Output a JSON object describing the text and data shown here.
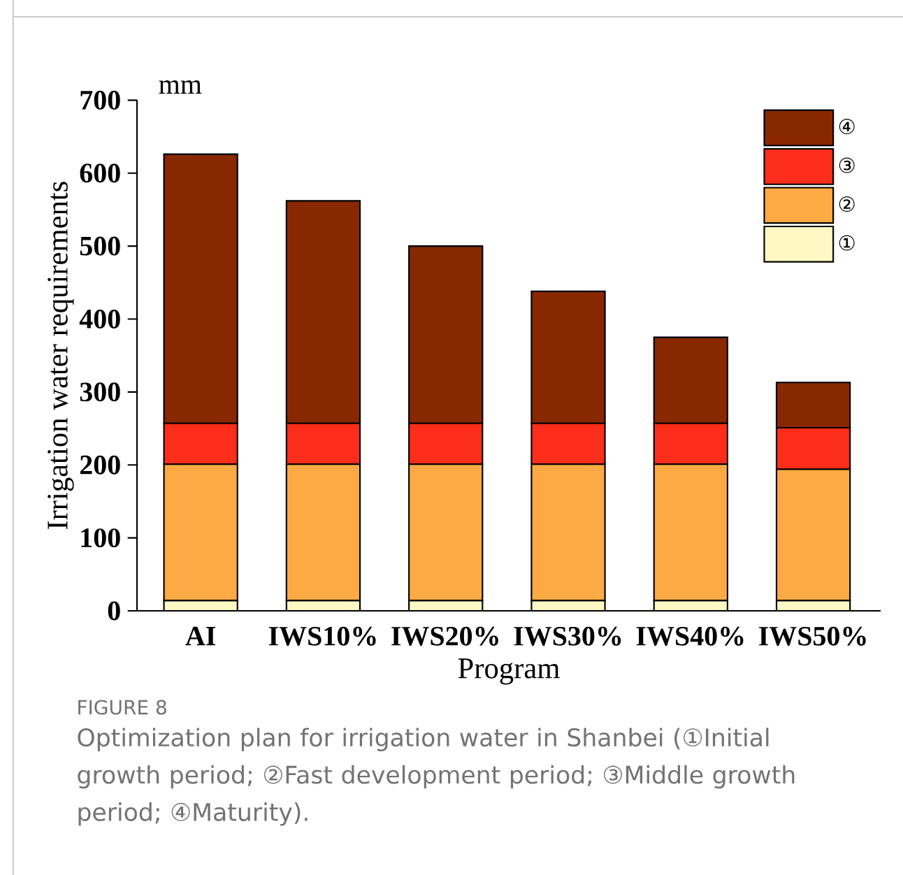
{
  "chart_data": {
    "type": "bar",
    "stacked": true,
    "ylabel": "Irrigation water requirements",
    "xlabel": "Program",
    "categories": [
      "AI",
      "IWS10%",
      "IWS20%",
      "IWS30%",
      "IWS40%",
      "IWS50%"
    ],
    "ylim": [
      0,
      700
    ],
    "yticks": [
      0,
      100,
      200,
      300,
      400,
      500,
      600,
      700
    ],
    "legend": "top right",
    "grid": false,
    "series": [
      {
        "name": "①",
        "color": "#fff8c4",
        "values": [
          14,
          14,
          14,
          14,
          14,
          14
        ]
      },
      {
        "name": "②",
        "color": "#fdaa44",
        "values": [
          187,
          187,
          187,
          187,
          187,
          180
        ]
      },
      {
        "name": "③",
        "color": "#fc2d1a",
        "values": [
          56,
          56,
          56,
          56,
          56,
          57
        ]
      },
      {
        "name": "④",
        "color": "#882800",
        "values": [
          369,
          305,
          243,
          181,
          118,
          62
        ]
      }
    ],
    "annotations": [
      "mm",
      "FIGURE 8",
      "Optimization plan for irrigation water in Shanbei (①Initial growth period; ②Fast development period; ③Middle growth period; ④Maturity)."
    ]
  }
}
